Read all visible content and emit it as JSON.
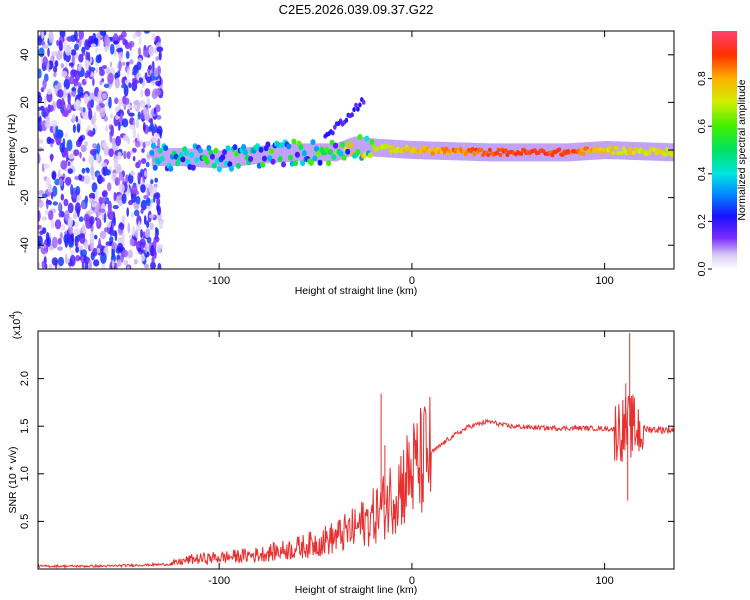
{
  "title": "C2E5.2026.039.09.37.G22",
  "colors": {
    "snr_line": "#e83030",
    "axes": "#000000"
  },
  "chart_data": [
    {
      "type": "heatmap",
      "xlabel": "Height of straight line (km)",
      "ylabel": "Frequency (Hz)",
      "xlim": [
        -194,
        136
      ],
      "ylim": [
        -50,
        50
      ],
      "xticks": [
        "-100",
        "0",
        "100"
      ],
      "xtick_values": [
        -100,
        0,
        100
      ],
      "yticks": [
        "-40",
        "-20",
        "0",
        "20",
        "40"
      ],
      "ytick_values": [
        -40,
        -20,
        0,
        20,
        40
      ],
      "colorbar": {
        "label": "Normalized spectral amplitude",
        "ticks": [
          "0.0",
          "0.2",
          "0.4",
          "0.6",
          "0.8"
        ],
        "tick_values": [
          0.0,
          0.2,
          0.4,
          0.6,
          0.8
        ],
        "range": [
          0,
          1
        ]
      },
      "ridge": {
        "x": [
          -135,
          -120,
          -100,
          -80,
          -60,
          -40,
          -30,
          -20,
          0,
          40,
          80,
          100,
          136
        ],
        "freq": [
          -3,
          -3,
          -4,
          -2,
          -1,
          -1,
          2,
          1,
          0,
          -1,
          -1,
          0,
          -1
        ],
        "amplitude": [
          0.35,
          0.4,
          0.45,
          0.5,
          0.5,
          0.55,
          0.65,
          0.75,
          0.8,
          0.95,
          0.95,
          0.8,
          0.75
        ]
      }
    },
    {
      "type": "line",
      "xlabel": "Height of straight line (km)",
      "ylabel": "SNR (10 * v/v)",
      "yscale_label": "(x10",
      "yscale_exponent": "4",
      "xlim": [
        -194,
        136
      ],
      "ylim": [
        0,
        2.5
      ],
      "xticks": [
        "-100",
        "0",
        "100"
      ],
      "xtick_values": [
        -100,
        0,
        100
      ],
      "yticks": [
        "0.5",
        "1.0",
        "1.5",
        "2.0"
      ],
      "ytick_values": [
        0.5,
        1.0,
        1.5,
        2.0
      ],
      "series": [
        {
          "name": "SNR",
          "x": [
            -194,
            -160,
            -125,
            -115,
            -100,
            -80,
            -60,
            -50,
            -40,
            -30,
            -20,
            -15,
            -10,
            -5,
            0,
            10,
            20,
            30,
            40,
            50,
            70,
            90,
            105,
            110,
            113,
            116,
            120,
            136
          ],
          "values": [
            0.03,
            0.03,
            0.05,
            0.1,
            0.12,
            0.15,
            0.22,
            0.27,
            0.33,
            0.42,
            0.55,
            0.65,
            0.78,
            0.9,
            1.02,
            1.22,
            1.38,
            1.5,
            1.55,
            1.5,
            1.48,
            1.48,
            1.47,
            1.47,
            1.5,
            1.48,
            1.47,
            1.46
          ],
          "spikes": [
            {
              "x": -16,
              "value": 1.84
            },
            {
              "x": -14,
              "value": 1.3
            },
            {
              "x": 111,
              "value": 1.95
            },
            {
              "x": 113,
              "value": 2.48
            },
            {
              "x": 112,
              "value": 0.72
            }
          ]
        }
      ]
    }
  ]
}
